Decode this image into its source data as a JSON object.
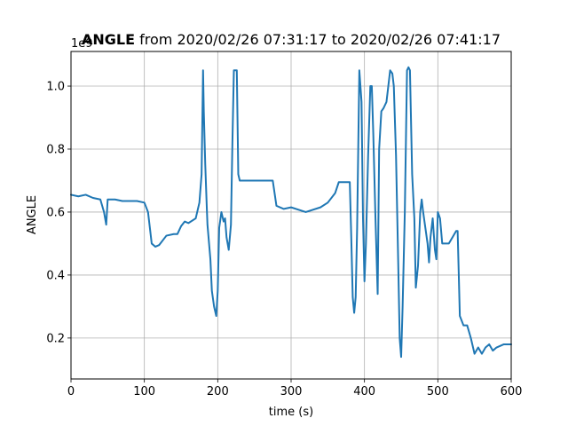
{
  "chart_data": {
    "type": "line",
    "title_bold": "ANGLE",
    "title_rest": " from 2020/02/26 07:31:17 to 2020/02/26 07:41:17",
    "xlabel": "time (s)",
    "ylabel": "ANGLE",
    "y_offset_label": "1e9",
    "xlim": [
      0,
      600
    ],
    "ylim": [
      0.07,
      1.11
    ],
    "xticks": [
      0,
      100,
      200,
      300,
      400,
      500,
      600
    ],
    "yticks": [
      0.2,
      0.4,
      0.6,
      0.8,
      1.0
    ],
    "xtick_labels": [
      "0",
      "100",
      "200",
      "300",
      "400",
      "500",
      "600"
    ],
    "ytick_labels": [
      "0.2",
      "0.4",
      "0.6",
      "0.8",
      "1.0"
    ],
    "grid": true,
    "line_color": "#1f77b4",
    "series": [
      {
        "x": [
          0,
          10,
          20,
          30,
          40,
          45,
          48,
          50,
          55,
          60,
          70,
          80,
          90,
          100,
          105,
          110,
          115,
          120,
          130,
          140,
          145,
          150,
          155,
          160,
          170,
          175,
          178,
          180,
          181,
          183,
          185,
          186,
          190,
          192,
          195,
          198,
          200,
          202,
          205,
          208,
          210,
          212,
          215,
          218,
          220,
          222,
          224,
          226,
          228,
          230,
          240,
          250,
          260,
          270,
          275,
          280,
          290,
          300,
          320,
          340,
          350,
          360,
          365,
          370,
          375,
          380,
          382,
          384,
          386,
          388,
          390,
          393,
          396,
          398,
          400,
          402,
          405,
          408,
          410,
          412,
          415,
          418,
          420,
          423,
          426,
          430,
          435,
          438,
          440,
          443,
          446,
          448,
          450,
          452,
          455,
          458,
          460,
          462,
          465,
          468,
          470,
          473,
          476,
          478,
          480,
          483,
          486,
          488,
          490,
          493,
          496,
          498,
          500,
          503,
          506,
          510,
          515,
          520,
          525,
          527,
          530,
          535,
          540,
          545,
          550,
          555,
          560,
          565,
          570,
          575,
          580,
          590,
          600
        ],
        "y": [
          0.655,
          0.65,
          0.655,
          0.645,
          0.64,
          0.6,
          0.56,
          0.64,
          0.64,
          0.64,
          0.635,
          0.635,
          0.635,
          0.63,
          0.6,
          0.5,
          0.49,
          0.495,
          0.525,
          0.53,
          0.53,
          0.555,
          0.57,
          0.565,
          0.58,
          0.63,
          0.72,
          1.05,
          0.92,
          0.75,
          0.62,
          0.56,
          0.45,
          0.35,
          0.3,
          0.27,
          0.35,
          0.55,
          0.6,
          0.57,
          0.58,
          0.52,
          0.48,
          0.56,
          0.82,
          1.05,
          1.05,
          1.05,
          0.72,
          0.7,
          0.7,
          0.7,
          0.7,
          0.7,
          0.7,
          0.62,
          0.61,
          0.615,
          0.6,
          0.615,
          0.63,
          0.66,
          0.695,
          0.695,
          0.695,
          0.695,
          0.52,
          0.33,
          0.28,
          0.33,
          0.55,
          1.05,
          0.95,
          0.58,
          0.38,
          0.5,
          0.78,
          1.0,
          1.0,
          0.85,
          0.58,
          0.34,
          0.8,
          0.92,
          0.93,
          0.95,
          1.05,
          1.04,
          1.0,
          0.78,
          0.44,
          0.2,
          0.14,
          0.3,
          0.6,
          1.05,
          1.06,
          1.05,
          0.72,
          0.58,
          0.36,
          0.43,
          0.6,
          0.64,
          0.6,
          0.55,
          0.5,
          0.44,
          0.52,
          0.58,
          0.48,
          0.45,
          0.6,
          0.58,
          0.5,
          0.5,
          0.5,
          0.52,
          0.54,
          0.54,
          0.27,
          0.24,
          0.24,
          0.2,
          0.15,
          0.17,
          0.15,
          0.17,
          0.18,
          0.16,
          0.17,
          0.18,
          0.18
        ]
      }
    ]
  }
}
